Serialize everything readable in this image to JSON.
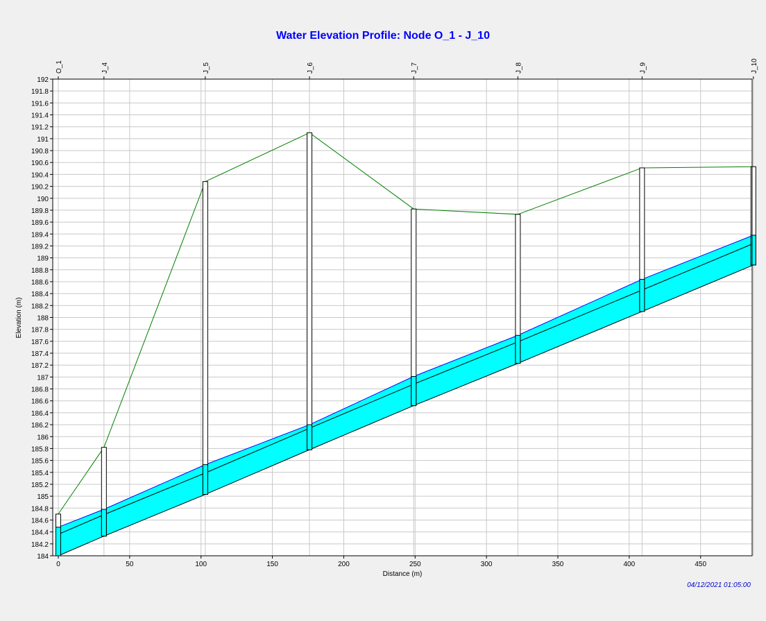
{
  "title": "Water Elevation Profile: Node O_1 - J_10",
  "timestamp": "04/12/2021 01:05:00",
  "chart_data": {
    "type": "area",
    "title": "Water Elevation Profile: Node O_1 - J_10",
    "xlabel": "Distance (m)",
    "ylabel": "Elevation (m)",
    "xlim": [
      0,
      490
    ],
    "ylim": [
      184,
      192
    ],
    "xticks": [
      0,
      50,
      100,
      150,
      200,
      250,
      300,
      350,
      400,
      450
    ],
    "yticks": [
      184,
      184.2,
      184.4,
      184.6,
      184.8,
      185,
      185.2,
      185.4,
      185.6,
      185.8,
      186,
      186.2,
      186.4,
      186.6,
      186.8,
      187,
      187.2,
      187.4,
      187.6,
      187.8,
      188,
      188.2,
      188.4,
      188.6,
      188.8,
      189,
      189.2,
      189.4,
      189.6,
      189.8,
      190,
      190.2,
      190.4,
      190.6,
      190.8,
      191,
      191.2,
      191.4,
      191.6,
      191.8,
      192
    ],
    "grid": true,
    "colors": {
      "water": "#00ffff",
      "ground": "#008000",
      "pipe": "#000000",
      "grid": "#c8c8c8",
      "title": "#0000ff"
    },
    "nodes": [
      {
        "name": "O_1",
        "x": 0,
        "invert": 184.0,
        "ground": 184.7,
        "water": 184.48
      },
      {
        "name": "J_4",
        "x": 32,
        "invert": 184.33,
        "ground": 185.82,
        "water": 184.78
      },
      {
        "name": "J_5",
        "x": 103,
        "invert": 185.03,
        "ground": 190.28,
        "water": 185.53
      },
      {
        "name": "J_6",
        "x": 176,
        "invert": 185.78,
        "ground": 191.1,
        "water": 186.2
      },
      {
        "name": "J_7",
        "x": 249,
        "invert": 186.52,
        "ground": 189.82,
        "water": 187.01
      },
      {
        "name": "J_8",
        "x": 322,
        "invert": 187.23,
        "ground": 189.73,
        "water": 187.7
      },
      {
        "name": "J_9",
        "x": 409,
        "invert": 188.1,
        "ground": 190.51,
        "water": 188.64
      },
      {
        "name": "J_10",
        "x": 487,
        "invert": 188.88,
        "ground": 190.53,
        "water": 189.38
      }
    ],
    "conduit": {
      "diameter": 0.36
    }
  }
}
